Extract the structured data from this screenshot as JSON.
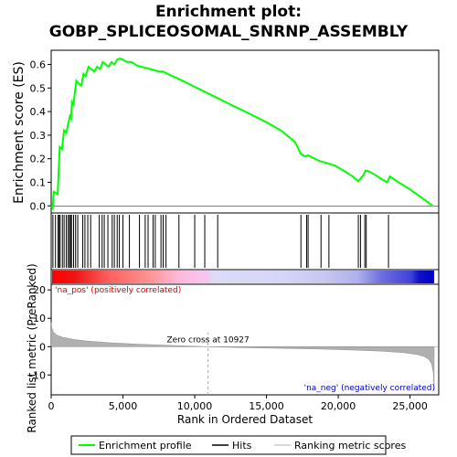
{
  "title_line1": "Enrichment plot:",
  "title_line2": "GOBP_SPLICEOSOMAL_SNRNP_ASSEMBLY",
  "colors": {
    "enrichment": "#00ff00",
    "hits": "#000000",
    "metric_fill": "#b0b0b0",
    "pos_text": "#d40000",
    "neg_text": "#0000c0",
    "zero_line": "#aaaaaa"
  },
  "chart_data": {
    "type": "line",
    "top_panel": {
      "ylabel": "Enrichment score (ES)",
      "yticks": [
        0.0,
        0.1,
        0.2,
        0.3,
        0.4,
        0.5,
        0.6
      ],
      "ylim": [
        -0.03,
        0.66
      ],
      "xlim": [
        0,
        27000
      ],
      "series": [
        {
          "name": "Enrichment profile",
          "points": [
            [
              0,
              0.0
            ],
            [
              100,
              -0.01
            ],
            [
              180,
              0.06
            ],
            [
              450,
              0.05
            ],
            [
              520,
              0.15
            ],
            [
              600,
              0.25
            ],
            [
              750,
              0.24
            ],
            [
              900,
              0.32
            ],
            [
              1050,
              0.31
            ],
            [
              1200,
              0.35
            ],
            [
              1300,
              0.38
            ],
            [
              1380,
              0.37
            ],
            [
              1450,
              0.44
            ],
            [
              1550,
              0.43
            ],
            [
              1650,
              0.48
            ],
            [
              1750,
              0.53
            ],
            [
              1900,
              0.52
            ],
            [
              2100,
              0.51
            ],
            [
              2250,
              0.56
            ],
            [
              2400,
              0.55
            ],
            [
              2600,
              0.59
            ],
            [
              2800,
              0.58
            ],
            [
              3000,
              0.57
            ],
            [
              3200,
              0.59
            ],
            [
              3400,
              0.58
            ],
            [
              3600,
              0.61
            ],
            [
              3800,
              0.6
            ],
            [
              4000,
              0.59
            ],
            [
              4200,
              0.61
            ],
            [
              4400,
              0.6
            ],
            [
              4600,
              0.62
            ],
            [
              4800,
              0.625
            ],
            [
              5000,
              0.62
            ],
            [
              5300,
              0.61
            ],
            [
              5600,
              0.61
            ],
            [
              6000,
              0.595
            ],
            [
              6300,
              0.59
            ],
            [
              6600,
              0.585
            ],
            [
              6900,
              0.58
            ],
            [
              7200,
              0.575
            ],
            [
              7500,
              0.57
            ],
            [
              7800,
              0.57
            ],
            [
              8100,
              0.56
            ],
            [
              9000,
              0.535
            ],
            [
              10000,
              0.505
            ],
            [
              11000,
              0.475
            ],
            [
              12000,
              0.445
            ],
            [
              13000,
              0.415
            ],
            [
              14000,
              0.385
            ],
            [
              15000,
              0.355
            ],
            [
              16000,
              0.32
            ],
            [
              17000,
              0.27
            ],
            [
              17400,
              0.22
            ],
            [
              17700,
              0.21
            ],
            [
              17900,
              0.215
            ],
            [
              18200,
              0.205
            ],
            [
              18700,
              0.19
            ],
            [
              19300,
              0.18
            ],
            [
              19800,
              0.17
            ],
            [
              20500,
              0.145
            ],
            [
              21000,
              0.125
            ],
            [
              21400,
              0.105
            ],
            [
              21600,
              0.12
            ],
            [
              21750,
              0.13
            ],
            [
              21900,
              0.15
            ],
            [
              22200,
              0.145
            ],
            [
              22600,
              0.13
            ],
            [
              23000,
              0.115
            ],
            [
              23400,
              0.1
            ],
            [
              23600,
              0.125
            ],
            [
              24200,
              0.1
            ],
            [
              25000,
              0.07
            ],
            [
              25800,
              0.035
            ],
            [
              26600,
              0.0
            ]
          ]
        }
      ]
    },
    "hits": [
      120,
      300,
      480,
      560,
      620,
      780,
      900,
      1050,
      1180,
      1280,
      1340,
      1420,
      1560,
      1700,
      1850,
      2200,
      2350,
      2550,
      2750,
      3350,
      3550,
      3700,
      3950,
      4250,
      4400,
      4600,
      4750,
      5000,
      5450,
      6150,
      6550,
      6750,
      7100,
      7250,
      7650,
      7800,
      8000,
      8900,
      10000,
      10700,
      11600,
      17400,
      17800,
      17900,
      18800,
      19350,
      21400,
      21550,
      21850,
      21950,
      23500
    ],
    "bottom_panel": {
      "ylabel": "Ranked list metric (PreRanked)",
      "xlabel": "Rank in Ordered Dataset",
      "yticks": [
        -10,
        0,
        10,
        20
      ],
      "ylim": [
        -17,
        22
      ],
      "xticks": [
        0,
        5000,
        10000,
        15000,
        20000,
        25000
      ],
      "xtick_labels": [
        "0",
        "5,000",
        "10,000",
        "15,000",
        "20,000",
        "25,000"
      ],
      "xlim": [
        0,
        27000
      ],
      "metric_curve": [
        [
          0,
          8.5
        ],
        [
          50,
          6.5
        ],
        [
          150,
          5.2
        ],
        [
          400,
          4.0
        ],
        [
          800,
          3.3
        ],
        [
          1500,
          2.6
        ],
        [
          2500,
          2.0
        ],
        [
          4000,
          1.4
        ],
        [
          6000,
          0.9
        ],
        [
          8000,
          0.5
        ],
        [
          10000,
          0.15
        ],
        [
          10927,
          0.0
        ],
        [
          13000,
          -0.3
        ],
        [
          16000,
          -0.6
        ],
        [
          19000,
          -0.9
        ],
        [
          21000,
          -1.2
        ],
        [
          23000,
          -1.6
        ],
        [
          24500,
          -2.1
        ],
        [
          25500,
          -2.8
        ],
        [
          26000,
          -3.5
        ],
        [
          26300,
          -4.5
        ],
        [
          26500,
          -6.0
        ],
        [
          26620,
          -9.0
        ],
        [
          26680,
          -15.5
        ]
      ],
      "zero_cross_label": "Zero cross at 10927",
      "zero_cross": 10927,
      "pos_label": "'na_pos' (positively correlated)",
      "neg_label": "'na_neg' (negatively correlated)"
    },
    "heatmap_bar": {
      "xlim": [
        0,
        26680
      ],
      "stops": [
        [
          0.0,
          "#ff0000"
        ],
        [
          0.06,
          "#ee1515"
        ],
        [
          0.15,
          "#ff6060"
        ],
        [
          0.25,
          "#ff9090"
        ],
        [
          0.33,
          "#ffb8d8"
        ],
        [
          0.41,
          "#f4c8f0"
        ],
        [
          0.42,
          "#dcdcf8"
        ],
        [
          0.6,
          "#d6d6f6"
        ],
        [
          0.71,
          "#c8c8f0"
        ],
        [
          0.8,
          "#b0b0ec"
        ],
        [
          0.86,
          "#7070e0"
        ],
        [
          0.94,
          "#4040d8"
        ],
        [
          0.96,
          "#1010c8"
        ],
        [
          1.0,
          "#0000c0"
        ]
      ]
    },
    "legend": {
      "placement": "bottom",
      "items": [
        {
          "label": "Enrichment profile",
          "kind": "line",
          "color": "#00ff00"
        },
        {
          "label": "Hits",
          "kind": "line",
          "color": "#000000"
        },
        {
          "label": "Ranking metric scores",
          "kind": "line",
          "color": "#cccccc"
        }
      ]
    }
  }
}
